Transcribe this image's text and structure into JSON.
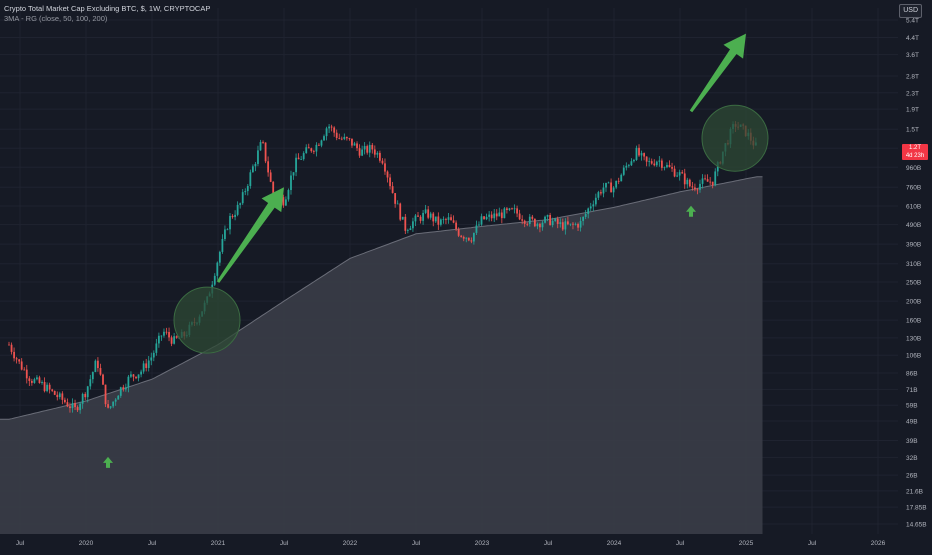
{
  "legend": {
    "title": "Crypto Total Market Cap Excluding BTC, $, 1W, CRYPTOCAP",
    "indicator": "3MA - RG (close, 50, 100, 200)"
  },
  "currency": "USD",
  "last_price": {
    "value": "1.2T",
    "countdown": "4d 23h"
  },
  "colors": {
    "background": "#161a25",
    "up": "#26a69a",
    "down": "#ef5350",
    "ma_fill": "#3a3d48",
    "arrow": "#4caf50",
    "highlight_circle": "#2d4a34"
  },
  "chart_data": {
    "type": "candlestick",
    "scale": "log",
    "y_ticks": [
      "5.4T",
      "4.4T",
      "3.6T",
      "2.8T",
      "2.3T",
      "1.9T",
      "1.5T",
      "1.2T",
      "960B",
      "760B",
      "610B",
      "490B",
      "390B",
      "310B",
      "250B",
      "200B",
      "160B",
      "130B",
      "106B",
      "86B",
      "71B",
      "59B",
      "49B",
      "39B",
      "32B",
      "26B",
      "21.6B",
      "17.85B",
      "14.65B"
    ],
    "y_tick_values": [
      5400,
      4400,
      3600,
      2800,
      2300,
      1900,
      1500,
      1200,
      960,
      760,
      610,
      490,
      390,
      310,
      250,
      200,
      160,
      130,
      106,
      86,
      71,
      59,
      49,
      39,
      32,
      26,
      21.6,
      17.85,
      14.65
    ],
    "y_unit": "B",
    "x_ticks": [
      "Jul",
      "2020",
      "Jul",
      "2021",
      "Jul",
      "2022",
      "Jul",
      "2023",
      "Jul",
      "2024",
      "Jul",
      "2025",
      "Jul",
      "2026"
    ],
    "x_tick_dates": [
      "2019-07",
      "2020-01",
      "2020-07",
      "2021-01",
      "2021-07",
      "2022-01",
      "2022-07",
      "2023-01",
      "2023-07",
      "2024-01",
      "2024-07",
      "2025-01",
      "2025-07",
      "2026-01"
    ],
    "price_path": [
      [
        "2019-06",
        120
      ],
      [
        "2019-07",
        95
      ],
      [
        "2019-08",
        80
      ],
      [
        "2019-09",
        75
      ],
      [
        "2019-10",
        68
      ],
      [
        "2019-11",
        62
      ],
      [
        "2019-12",
        56
      ],
      [
        "2020-01",
        70
      ],
      [
        "2020-02",
        100
      ],
      [
        "2020-03",
        55
      ],
      [
        "2020-04",
        70
      ],
      [
        "2020-05",
        82
      ],
      [
        "2020-06",
        88
      ],
      [
        "2020-07",
        105
      ],
      [
        "2020-08",
        140
      ],
      [
        "2020-09",
        125
      ],
      [
        "2020-10",
        135
      ],
      [
        "2020-11",
        160
      ],
      [
        "2020-12",
        200
      ],
      [
        "2021-01",
        330
      ],
      [
        "2021-02",
        520
      ],
      [
        "2021-03",
        620
      ],
      [
        "2021-04",
        900
      ],
      [
        "2021-05",
        1300
      ],
      [
        "2021-06",
        700
      ],
      [
        "2021-07",
        650
      ],
      [
        "2021-08",
        1000
      ],
      [
        "2021-09",
        1150
      ],
      [
        "2021-10",
        1250
      ],
      [
        "2021-11",
        1580
      ],
      [
        "2021-12",
        1350
      ],
      [
        "2022-01",
        1300
      ],
      [
        "2022-02",
        1150
      ],
      [
        "2022-03",
        1200
      ],
      [
        "2022-04",
        1050
      ],
      [
        "2022-05",
        680
      ],
      [
        "2022-06",
        470
      ],
      [
        "2022-07",
        520
      ],
      [
        "2022-08",
        560
      ],
      [
        "2022-09",
        500
      ],
      [
        "2022-10",
        520
      ],
      [
        "2022-11",
        440
      ],
      [
        "2022-12",
        420
      ],
      [
        "2023-01",
        520
      ],
      [
        "2023-02",
        540
      ],
      [
        "2023-03",
        560
      ],
      [
        "2023-04",
        570
      ],
      [
        "2023-05",
        520
      ],
      [
        "2023-06",
        500
      ],
      [
        "2023-07",
        520
      ],
      [
        "2023-08",
        490
      ],
      [
        "2023-09",
        480
      ],
      [
        "2023-10",
        500
      ],
      [
        "2023-11",
        640
      ],
      [
        "2023-12",
        760
      ],
      [
        "2024-01",
        760
      ],
      [
        "2024-02",
        950
      ],
      [
        "2024-03",
        1150
      ],
      [
        "2024-04",
        1000
      ],
      [
        "2024-05",
        1050
      ],
      [
        "2024-06",
        950
      ],
      [
        "2024-07",
        880
      ],
      [
        "2024-08",
        760
      ],
      [
        "2024-09",
        800
      ],
      [
        "2024-10",
        820
      ],
      [
        "2024-11",
        1200
      ],
      [
        "2024-12",
        1600
      ],
      [
        "2025-01",
        1450
      ],
      [
        "2025-02",
        1200
      ]
    ],
    "ma_path": [
      [
        "2019-06",
        50
      ],
      [
        "2020-01",
        62
      ],
      [
        "2020-07",
        80
      ],
      [
        "2021-01",
        120
      ],
      [
        "2021-07",
        200
      ],
      [
        "2022-01",
        330
      ],
      [
        "2022-07",
        440
      ],
      [
        "2023-01",
        480
      ],
      [
        "2023-07",
        520
      ],
      [
        "2024-01",
        600
      ],
      [
        "2024-07",
        720
      ],
      [
        "2025-02",
        860
      ]
    ],
    "annotations": [
      {
        "kind": "up-arrow-small",
        "date": "2020-03",
        "value": 30
      },
      {
        "kind": "circle",
        "date": "2020-12",
        "value": 160
      },
      {
        "kind": "big-arrow",
        "date_from": "2021-01",
        "value_from": 250,
        "date_to": "2021-07",
        "value_to": 760
      },
      {
        "kind": "up-arrow-small",
        "date": "2024-08",
        "value": 570
      },
      {
        "kind": "circle",
        "date": "2024-12",
        "value": 1350
      },
      {
        "kind": "big-arrow",
        "date_from": "2024-08",
        "value_from": 1850,
        "date_to": "2025-01",
        "value_to": 4600
      }
    ]
  }
}
